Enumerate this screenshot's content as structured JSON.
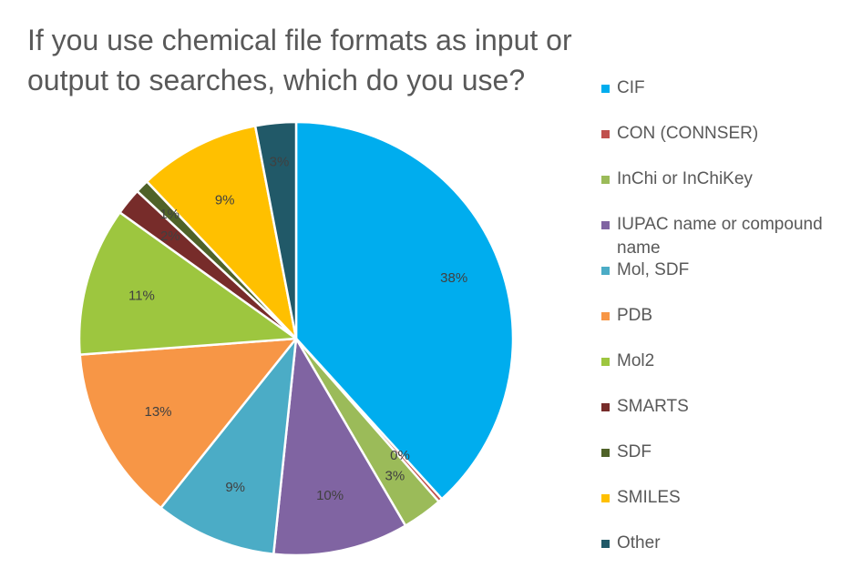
{
  "chart_data": {
    "type": "pie",
    "title": "If you use chemical file formats as input or output to searches, which do you use?",
    "legend_position": "right",
    "categories": [
      "CIF",
      "CON (CONNSER)",
      "InChi or InChiKey",
      "IUPAC name or compound name",
      "Mol, SDF",
      "PDB",
      "Mol2",
      "SMARTS",
      "SDF",
      "SMILES",
      "Other"
    ],
    "values": [
      38,
      0.3,
      3,
      10,
      9,
      13,
      11,
      2,
      1,
      9,
      3
    ],
    "data_labels": [
      "38%",
      "0%",
      "3%",
      "10%",
      "9%",
      "13%",
      "11%",
      "2%",
      "1%",
      "9%",
      "3%"
    ],
    "colors": [
      "#00adee",
      "#c0504d",
      "#9bbb59",
      "#8064a2",
      "#4bacc6",
      "#f79646",
      "#9dc63f",
      "#772c2a",
      "#4f6228",
      "#ffc000",
      "#215968"
    ]
  }
}
